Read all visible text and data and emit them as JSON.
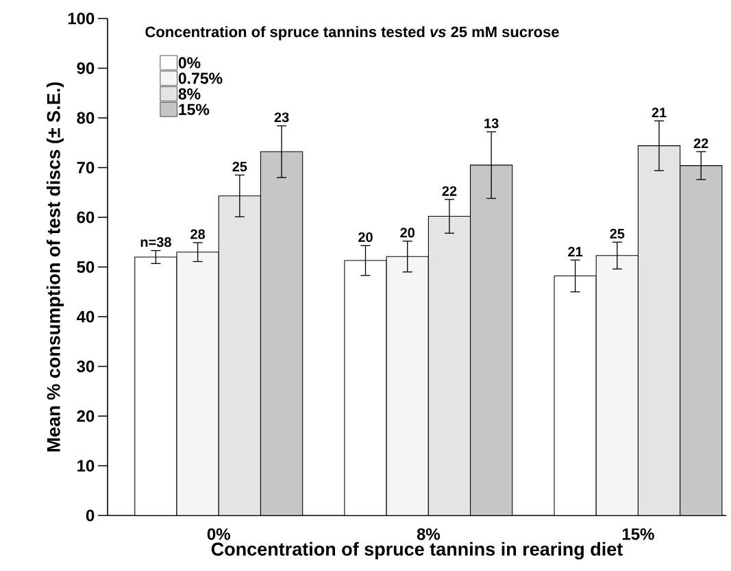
{
  "chart_data": {
    "type": "bar",
    "legend_title": "Concentration of spruce tannins tested *vs* 25 mM sucrose",
    "xlabel": "Concentration of spruce tannins in rearing diet",
    "ylabel": "Mean % consumption of test discs (± S.E.)",
    "categories": [
      "0%",
      "8%",
      "15%"
    ],
    "series": [
      {
        "name": "0%",
        "color": "#ffffff",
        "values": [
          52,
          51.3,
          48.2
        ],
        "errors": [
          1.3,
          3,
          3.2
        ]
      },
      {
        "name": "0.75%",
        "color": "#f5f5f5",
        "values": [
          53,
          52.1,
          52.3
        ],
        "errors": [
          1.9,
          3.1,
          2.7
        ]
      },
      {
        "name": "8%",
        "color": "#e4e4e4",
        "values": [
          64.3,
          60.2,
          74.4
        ],
        "errors": [
          4.2,
          3.4,
          5
        ]
      },
      {
        "name": "15%",
        "color": "#c6c6c6",
        "values": [
          73.2,
          70.5,
          70.4
        ],
        "errors": [
          5.2,
          6.7,
          2.8
        ]
      }
    ],
    "annotations": [
      "n=38",
      "28",
      "25",
      "23",
      "20",
      "20",
      "22",
      "13",
      "21",
      "25",
      "21",
      "22"
    ],
    "ylim": [
      0,
      100
    ],
    "yticks": [
      0,
      10,
      20,
      30,
      40,
      50,
      60,
      70,
      80,
      90,
      100
    ],
    "legend": "top left"
  }
}
